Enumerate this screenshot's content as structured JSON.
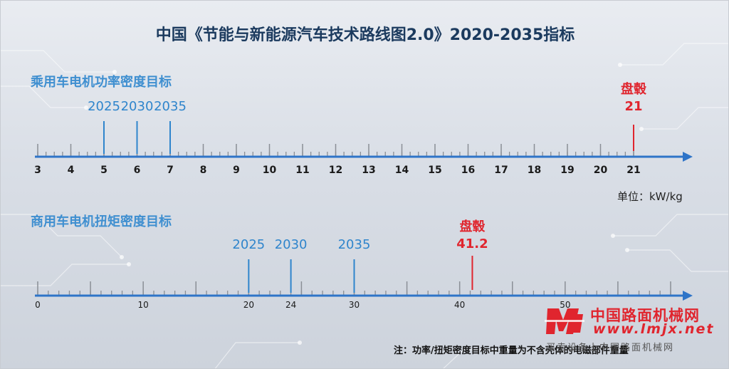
{
  "title": "中国《节能与新能源汽车技术路线图2.0》2020-2035指标",
  "footnote": "注：功率/扭矩密度目标中重量为不含壳体的电磁部件重量",
  "chart_data": [
    {
      "type": "number-line",
      "title": "乘用车电机功率密度目标",
      "unit": "单位：kW/kg",
      "axis": {
        "min": 3,
        "max": 21,
        "major_ticks": [
          3,
          4,
          5,
          6,
          7,
          8,
          9,
          10,
          11,
          12,
          13,
          14,
          15,
          16,
          17,
          18,
          19,
          20,
          21
        ],
        "minor_step": 0.25
      },
      "targets": [
        {
          "label": "2025",
          "value": 5
        },
        {
          "label": "2030",
          "value": 6
        },
        {
          "label": "2035",
          "value": 7
        }
      ],
      "highlight": {
        "name": "盘毂",
        "value_label": "21",
        "value": 21
      }
    },
    {
      "type": "number-line",
      "title": "商用车电机扭矩密度目标",
      "axis": {
        "min": 0,
        "max": 60,
        "labeled_ticks": [
          0,
          10,
          20,
          24,
          30,
          40,
          50
        ],
        "major_step": 5,
        "minor_step": 1
      },
      "targets": [
        {
          "label": "2025",
          "value": 20
        },
        {
          "label": "2030",
          "value": 24
        },
        {
          "label": "2035",
          "value": 30
        }
      ],
      "highlight": {
        "name": "盘毂",
        "value_label": "41.2",
        "value": 41.2
      }
    }
  ],
  "watermark": {
    "name": "中国路面机械网",
    "url": "www.lmjx.net",
    "slogan": "买卖设备上中国路面机械网"
  },
  "colors": {
    "axis": "#2e74c8",
    "target": "#2f85cc",
    "highlight": "#e0252e",
    "title": "#1b3a5e"
  }
}
